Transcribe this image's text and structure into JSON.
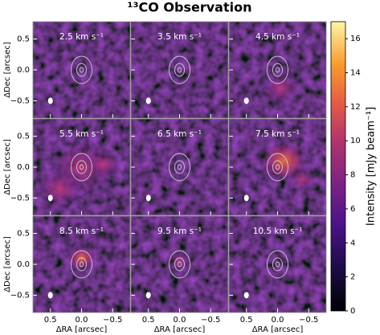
{
  "chart_data": {
    "type": "channel_map",
    "title": "¹³CO Observation",
    "xlabel": "ΔRA  [arcsec]",
    "ylabel": "ΔDec  [arcsec]",
    "panels": [
      "2.5 km s⁻¹",
      "3.5 km s⁻¹",
      "4.5 km s⁻¹",
      "5.5 km s⁻¹",
      "6.5 km s⁻¹",
      "7.5 km s⁻¹",
      "8.5 km s⁻¹",
      "9.5 km s⁻¹",
      "10.5 km s⁻¹"
    ],
    "xlim": [
      0.78,
      -0.78
    ],
    "xticks": [
      0.5,
      {
        "value": 0,
        "label": "0.0"
      },
      {
        "value": -0.5,
        "label": "−0.5"
      }
    ],
    "ylim": [
      -0.78,
      0.78
    ],
    "yticks": [
      {
        "value": -0.5,
        "label": "−0.5"
      },
      {
        "value": 0,
        "label": "0.0"
      },
      0.5
    ],
    "colorbar_label": "Intensity [mJy beam⁻¹]",
    "clim": [
      0,
      17
    ],
    "cticks": [
      0,
      2,
      4,
      6,
      8,
      10,
      12,
      14,
      16
    ]
  }
}
